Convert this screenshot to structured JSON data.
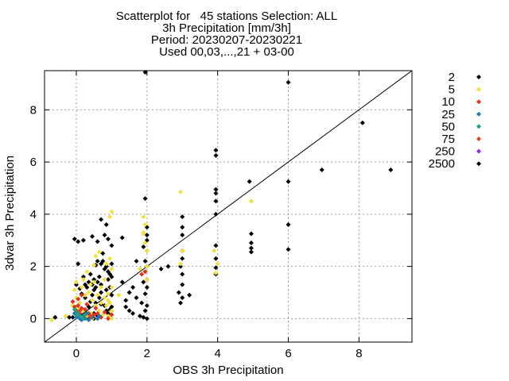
{
  "chart_data": {
    "type": "scatter",
    "title_lines": [
      "Scatterplot for   45 stations Selection: ALL",
      "3h Precipitation [mm/3h]",
      "Period: 20230207-20230221",
      "Used 00,03,...,21 + 03-00"
    ],
    "xlabel": "OBS 3h Precipitation",
    "ylabel": "3dvar 3h Precipitation",
    "xlim": [
      -0.9,
      9.5
    ],
    "ylim": [
      -0.9,
      9.5
    ],
    "xticks": [
      0,
      2,
      4,
      6,
      8
    ],
    "yticks": [
      0,
      2,
      4,
      6,
      8
    ],
    "grid": true,
    "diagonal": true,
    "legend_position": "right",
    "series": [
      {
        "name": "2",
        "color": "#000000",
        "points": [
          [
            -1.2,
            -0.05
          ],
          [
            -0.6,
            0.05
          ],
          [
            -0.2,
            0.05
          ],
          [
            -0.1,
            0.05
          ],
          [
            -0.05,
            3.05
          ],
          [
            0.05,
            2.95
          ],
          [
            0.2,
            3.0
          ],
          [
            0.45,
            3.15
          ],
          [
            0.6,
            2.95
          ],
          [
            0.8,
            3.2
          ],
          [
            0.9,
            3.05
          ],
          [
            0.75,
            2.5
          ],
          [
            1.0,
            2.8
          ],
          [
            1.3,
            3.1
          ],
          [
            0.7,
            3.8
          ],
          [
            0.85,
            3.6
          ],
          [
            0.2,
            1.6
          ],
          [
            0.25,
            1.3
          ],
          [
            0.3,
            1.2
          ],
          [
            0.35,
            1.4
          ],
          [
            0.45,
            1.3
          ],
          [
            0.5,
            1.5
          ],
          [
            0.55,
            1.2
          ],
          [
            0.6,
            1.4
          ],
          [
            0.65,
            1.6
          ],
          [
            0.7,
            1.3
          ],
          [
            0.75,
            2.2
          ],
          [
            0.8,
            1.9
          ],
          [
            0.85,
            2.0
          ],
          [
            0.9,
            1.5
          ],
          [
            0.95,
            1.7
          ],
          [
            1.0,
            2.1
          ],
          [
            0.6,
            2.2
          ],
          [
            0.55,
            2.05
          ],
          [
            0.7,
            2.1
          ],
          [
            0.4,
            1.7
          ],
          [
            0.45,
            0.9
          ],
          [
            0.5,
            1.1
          ],
          [
            0.65,
            0.8
          ],
          [
            0.7,
            0.55
          ],
          [
            0.8,
            0.5
          ],
          [
            0.85,
            0.3
          ],
          [
            0.9,
            0.2
          ],
          [
            0.95,
            0.35
          ],
          [
            1.0,
            0.45
          ],
          [
            0.2,
            0.15
          ],
          [
            0.3,
            0.05
          ],
          [
            0.5,
            0.2
          ],
          [
            0.6,
            0.1
          ],
          [
            0.35,
            0.45
          ],
          [
            0.55,
            0.6
          ],
          [
            0.15,
            0.95
          ],
          [
            0.25,
            0.8
          ],
          [
            0.4,
            0.65
          ],
          [
            0.0,
            1.3
          ],
          [
            0.1,
            1.15
          ],
          [
            0.95,
            1.2
          ],
          [
            1.0,
            0.9
          ],
          [
            0.85,
            1.1
          ],
          [
            0.7,
            1.0
          ],
          [
            1.5,
            1.0
          ],
          [
            1.6,
            1.2
          ],
          [
            1.9,
            1.4
          ],
          [
            1.7,
            0.8
          ],
          [
            1.85,
            0.6
          ],
          [
            1.95,
            0.3
          ],
          [
            1.8,
            0.1
          ],
          [
            1.9,
            0.05
          ],
          [
            2.0,
            0.0
          ],
          [
            1.95,
            0.95
          ],
          [
            2.0,
            0.5
          ],
          [
            2.0,
            1.2
          ],
          [
            2.0,
            1.5
          ],
          [
            2.0,
            2.0
          ],
          [
            1.95,
            2.2
          ],
          [
            2.0,
            2.6
          ],
          [
            1.9,
            2.75
          ],
          [
            2.0,
            3.0
          ],
          [
            2.0,
            3.2
          ],
          [
            2.0,
            3.5
          ],
          [
            1.95,
            4.6
          ],
          [
            1.95,
            9.45
          ],
          [
            1.4,
            0.45
          ],
          [
            1.5,
            0.3
          ],
          [
            1.6,
            0.2
          ],
          [
            2.4,
            1.9
          ],
          [
            2.6,
            2.0
          ],
          [
            2.9,
            1.0
          ],
          [
            2.95,
            0.6
          ],
          [
            3.0,
            0.8
          ],
          [
            3.0,
            1.3
          ],
          [
            3.0,
            1.7
          ],
          [
            2.95,
            2.0
          ],
          [
            3.0,
            2.3
          ],
          [
            3.0,
            2.6
          ],
          [
            3.0,
            3.2
          ],
          [
            3.0,
            3.5
          ],
          [
            3.0,
            3.9
          ],
          [
            3.2,
            0.9
          ],
          [
            3.95,
            4.0
          ],
          [
            3.95,
            4.5
          ],
          [
            3.95,
            4.8
          ],
          [
            3.95,
            4.95
          ],
          [
            3.95,
            6.25
          ],
          [
            3.95,
            6.45
          ],
          [
            3.95,
            2.8
          ],
          [
            3.95,
            2.3
          ],
          [
            3.95,
            1.7
          ],
          [
            3.95,
            1.95
          ],
          [
            4.9,
            5.25
          ],
          [
            4.95,
            3.25
          ],
          [
            4.95,
            2.9
          ],
          [
            4.95,
            2.7
          ],
          [
            4.95,
            2.55
          ],
          [
            6.0,
            9.05
          ],
          [
            6.0,
            5.25
          ],
          [
            6.0,
            3.6
          ],
          [
            6.0,
            2.65
          ],
          [
            6.95,
            5.7
          ],
          [
            8.1,
            7.5
          ],
          [
            8.9,
            5.7
          ],
          [
            1.3,
            1.4
          ],
          [
            1.4,
            0.7
          ],
          [
            1.7,
            2.2
          ],
          [
            0.9,
            1.8
          ],
          [
            1.0,
            1.6
          ],
          [
            0.05,
            2.1
          ],
          [
            0.5,
            0.0
          ]
        ]
      },
      {
        "name": "5",
        "color": "#f5df3c",
        "points": [
          [
            -0.7,
            -0.05
          ],
          [
            -0.3,
            0.1
          ],
          [
            -0.1,
            0.5
          ],
          [
            -0.05,
            1.1
          ],
          [
            0.0,
            0.8
          ],
          [
            0.0,
            1.4
          ],
          [
            0.05,
            0.4
          ],
          [
            0.1,
            0.6
          ],
          [
            0.15,
            1.2
          ],
          [
            0.2,
            0.3
          ],
          [
            0.25,
            0.9
          ],
          [
            0.3,
            0.1
          ],
          [
            0.35,
            1.0
          ],
          [
            0.4,
            0.2
          ],
          [
            0.45,
            0.7
          ],
          [
            0.5,
            1.4
          ],
          [
            0.55,
            0.5
          ],
          [
            0.6,
            0.9
          ],
          [
            0.65,
            0.3
          ],
          [
            0.7,
            1.2
          ],
          [
            0.75,
            0.15
          ],
          [
            0.8,
            0.8
          ],
          [
            0.85,
            0.5
          ],
          [
            0.9,
            0.1
          ],
          [
            0.95,
            0.6
          ],
          [
            1.0,
            0.3
          ],
          [
            1.0,
            0.0
          ],
          [
            0.9,
            0.95
          ],
          [
            0.8,
            1.5
          ],
          [
            0.7,
            0.6
          ],
          [
            0.6,
            0.0
          ],
          [
            0.2,
            1.5
          ],
          [
            0.3,
            1.8
          ],
          [
            0.4,
            1.3
          ],
          [
            0.5,
            2.05
          ],
          [
            0.55,
            2.4
          ],
          [
            0.65,
            2.55
          ],
          [
            0.85,
            2.1
          ],
          [
            0.95,
            2.3
          ],
          [
            1.0,
            1.9
          ],
          [
            0.95,
            3.9
          ],
          [
            1.0,
            4.1
          ],
          [
            1.0,
            1.2
          ],
          [
            0.9,
            0.7
          ],
          [
            1.9,
            3.9
          ],
          [
            1.95,
            3.6
          ],
          [
            1.9,
            3.25
          ],
          [
            2.0,
            2.6
          ],
          [
            2.0,
            2.0
          ],
          [
            1.95,
            1.8
          ],
          [
            2.0,
            1.5
          ],
          [
            1.95,
            2.9
          ],
          [
            1.9,
            3.3
          ],
          [
            2.95,
            4.85
          ],
          [
            3.0,
            2.6
          ],
          [
            2.95,
            2.1
          ],
          [
            3.95,
            1.75
          ],
          [
            4.0,
            2.1
          ],
          [
            3.9,
            2.6
          ],
          [
            4.95,
            4.5
          ],
          [
            1.8,
            1.9
          ],
          [
            1.2,
            0.9
          ],
          [
            0.1,
            0.05
          ],
          [
            0.45,
            0.0
          ]
        ]
      },
      {
        "name": "10",
        "color": "#e0331c",
        "points": [
          [
            -0.1,
            0.65
          ],
          [
            -0.05,
            0.45
          ],
          [
            0.0,
            0.3
          ],
          [
            0.05,
            0.5
          ],
          [
            0.1,
            0.2
          ],
          [
            0.15,
            0.4
          ],
          [
            0.2,
            0.1
          ],
          [
            0.25,
            0.35
          ],
          [
            0.3,
            0.55
          ],
          [
            0.35,
            0.2
          ],
          [
            0.4,
            0.05
          ],
          [
            0.5,
            0.15
          ],
          [
            0.55,
            0.4
          ],
          [
            0.6,
            0.2
          ],
          [
            0.7,
            0.05
          ],
          [
            0.8,
            0.25
          ],
          [
            0.9,
            0.0
          ],
          [
            1.0,
            0.15
          ],
          [
            0.15,
            0.9
          ],
          [
            0.05,
            0.75
          ],
          [
            1.95,
            1.8
          ],
          [
            1.85,
            1.7
          ]
        ]
      },
      {
        "name": "25",
        "color": "#1f77b4",
        "points": [
          [
            -0.05,
            0.2
          ],
          [
            0.0,
            0.05
          ],
          [
            0.05,
            0.15
          ],
          [
            0.1,
            0.0
          ],
          [
            0.15,
            -0.05
          ],
          [
            0.2,
            0.1
          ],
          [
            0.25,
            0.0
          ],
          [
            0.3,
            0.2
          ],
          [
            0.35,
            -0.05
          ],
          [
            0.45,
            0.05
          ],
          [
            0.6,
            0.0
          ],
          [
            0.65,
            0.1
          ]
        ]
      },
      {
        "name": "50",
        "color": "#1aa08a",
        "points": [
          [
            -0.05,
            0.35
          ],
          [
            0.0,
            0.15
          ],
          [
            0.05,
            0.25
          ],
          [
            0.1,
            0.1
          ],
          [
            0.2,
            0.0
          ],
          [
            0.25,
            0.15
          ]
        ]
      },
      {
        "name": "75",
        "color": "#dd4422",
        "points": [
          [
            0.1,
            0.3
          ],
          [
            0.4,
            0.1
          ]
        ]
      },
      {
        "name": "250",
        "color": "#8a2be2",
        "points": []
      },
      {
        "name": "2500",
        "color": "#000000",
        "points": []
      }
    ]
  }
}
